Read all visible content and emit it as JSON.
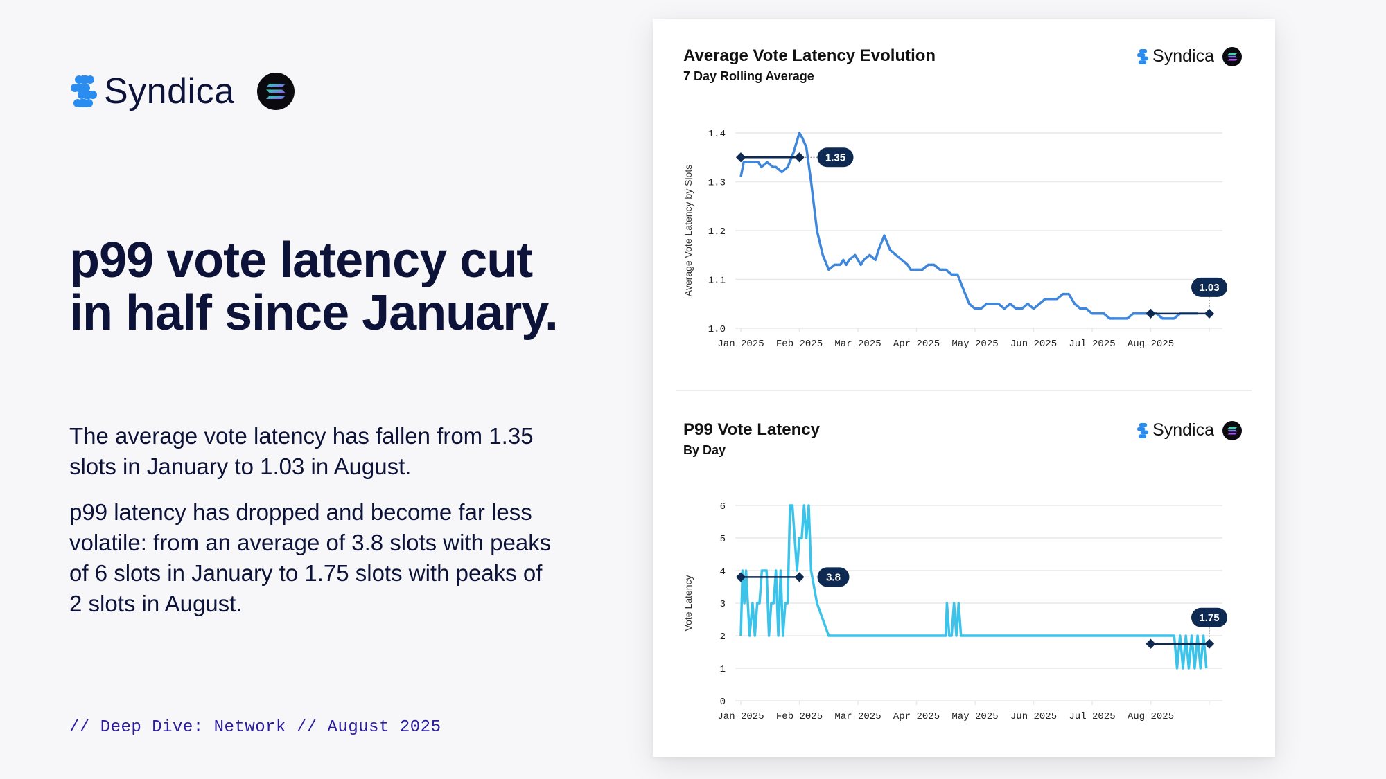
{
  "brand": {
    "name": "Syndica",
    "logo_icon": "syndica-logo-icon",
    "partner_icon": "solana-logo-icon"
  },
  "headline": "p99 vote latency cut in half since January.",
  "paragraphs": [
    "The average vote latency has fallen from 1.35 slots in January to 1.03 in August.",
    "p99 latency has dropped and become far less volatile: from an average of 3.8 slots with peaks of 6 slots in January to 1.75 slots with peaks of 2 slots in August."
  ],
  "footer": "// Deep Dive: Network // August 2025",
  "colors": {
    "navy": "#0d1338",
    "avg_line": "#3f87dc",
    "p99_line": "#3cc3ea",
    "annotation": "#0e2a52",
    "footer": "#2a1c9e"
  },
  "chart_data": [
    {
      "type": "line",
      "title": "Average Vote Latency Evolution",
      "subtitle": "7 Day Rolling Average",
      "xlabel": "",
      "ylabel": "Average Vote Latency by Slots",
      "ylim": [
        1.0,
        1.4
      ],
      "yticks": [
        "1.0",
        "1.1",
        "1.2",
        "1.3",
        "1.4"
      ],
      "ytick_values": [
        1.0,
        1.1,
        1.2,
        1.3,
        1.4
      ],
      "xticks": [
        "Jan 2025",
        "Feb 2025",
        "Mar 2025",
        "Apr 2025",
        "May 2025",
        "Jun 2025",
        "Jul 2025",
        "Aug 2025"
      ],
      "grid": true,
      "legend": "none",
      "x_unit": "months since Jan 1 2025",
      "series": [
        {
          "name": "Average Vote Latency (7d rolling)",
          "x": [
            0,
            0.05,
            0.15,
            0.3,
            0.35,
            0.45,
            0.55,
            0.6,
            0.7,
            0.8,
            0.9,
            1.0,
            1.05,
            1.12,
            1.2,
            1.3,
            1.4,
            1.5,
            1.6,
            1.7,
            1.75,
            1.8,
            1.85,
            1.95,
            2.05,
            2.1,
            2.2,
            2.3,
            2.35,
            2.45,
            2.55,
            2.65,
            2.75,
            2.85,
            2.9,
            3.0,
            3.1,
            3.2,
            3.3,
            3.4,
            3.5,
            3.6,
            3.7,
            3.8,
            3.9,
            4.0,
            4.1,
            4.2,
            4.3,
            4.4,
            4.5,
            4.6,
            4.7,
            4.8,
            4.9,
            5.0,
            5.1,
            5.2,
            5.3,
            5.4,
            5.5,
            5.6,
            5.7,
            5.8,
            5.9,
            6.0,
            6.1,
            6.2,
            6.3,
            6.4,
            6.5,
            6.6,
            6.7,
            6.8,
            6.9,
            7.0,
            7.1,
            7.2,
            7.3,
            7.4,
            7.5,
            7.6,
            7.7,
            7.8
          ],
          "values": [
            1.31,
            1.34,
            1.34,
            1.34,
            1.33,
            1.34,
            1.33,
            1.33,
            1.32,
            1.33,
            1.36,
            1.4,
            1.39,
            1.37,
            1.3,
            1.2,
            1.15,
            1.12,
            1.13,
            1.13,
            1.14,
            1.13,
            1.14,
            1.15,
            1.13,
            1.14,
            1.15,
            1.14,
            1.16,
            1.19,
            1.16,
            1.15,
            1.14,
            1.13,
            1.12,
            1.12,
            1.12,
            1.13,
            1.13,
            1.12,
            1.12,
            1.11,
            1.11,
            1.08,
            1.05,
            1.04,
            1.04,
            1.05,
            1.05,
            1.05,
            1.04,
            1.05,
            1.04,
            1.04,
            1.05,
            1.04,
            1.05,
            1.06,
            1.06,
            1.06,
            1.07,
            1.07,
            1.05,
            1.04,
            1.04,
            1.03,
            1.03,
            1.03,
            1.02,
            1.02,
            1.02,
            1.02,
            1.03,
            1.03,
            1.03,
            1.03,
            1.03,
            1.02,
            1.02,
            1.02,
            1.03,
            1.03,
            1.03,
            1.03
          ]
        }
      ],
      "annotations": [
        {
          "label": "1.35",
          "value": 1.35,
          "x_start": 0,
          "x_end": 1.0,
          "label_side": "right"
        },
        {
          "label": "1.03",
          "value": 1.03,
          "x_start": 7.0,
          "x_end": 8.0,
          "label_side": "above"
        }
      ]
    },
    {
      "type": "line",
      "title": "P99 Vote Latency",
      "subtitle": "By Day",
      "xlabel": "",
      "ylabel": "Vote Latency",
      "ylim": [
        0,
        6
      ],
      "yticks": [
        "0",
        "1",
        "2",
        "3",
        "4",
        "5",
        "6"
      ],
      "ytick_values": [
        0,
        1,
        2,
        3,
        4,
        5,
        6
      ],
      "xticks": [
        "Jan 2025",
        "Feb 2025",
        "Mar 2025",
        "Apr 2025",
        "May 2025",
        "Jun 2025",
        "Jul 2025",
        "Aug 2025"
      ],
      "grid": true,
      "legend": "none",
      "x_unit": "months since Jan 1 2025",
      "series": [
        {
          "name": "P99 Vote Latency (daily)",
          "x": [
            0,
            0.03,
            0.06,
            0.09,
            0.12,
            0.15,
            0.2,
            0.24,
            0.28,
            0.32,
            0.36,
            0.4,
            0.44,
            0.48,
            0.52,
            0.56,
            0.6,
            0.64,
            0.68,
            0.72,
            0.76,
            0.8,
            0.84,
            0.88,
            0.92,
            0.96,
            1.0,
            1.04,
            1.08,
            1.12,
            1.16,
            1.2,
            1.3,
            1.5,
            3.5,
            3.52,
            3.56,
            3.6,
            3.64,
            3.68,
            3.72,
            3.76,
            3.8,
            3.9,
            7.4,
            7.45,
            7.5,
            7.55,
            7.6,
            7.65,
            7.7,
            7.75,
            7.8,
            7.85,
            7.9,
            7.95
          ],
          "values": [
            2,
            4,
            3,
            4,
            3,
            2,
            3,
            2,
            3,
            3,
            4,
            4,
            4,
            2,
            3,
            3,
            4,
            2,
            4,
            2,
            3,
            3,
            6,
            6,
            5,
            4,
            5,
            5,
            6,
            5,
            6,
            4,
            3,
            2,
            2,
            3,
            2,
            2,
            3,
            2,
            3,
            2,
            2,
            2,
            2,
            1,
            2,
            1,
            2,
            1,
            2,
            1,
            2,
            1,
            2,
            1
          ],
          "peak": 6
        }
      ],
      "annotations": [
        {
          "label": "3.8",
          "value": 3.8,
          "x_start": 0,
          "x_end": 1.0,
          "label_side": "right"
        },
        {
          "label": "1.75",
          "value": 1.75,
          "x_start": 7.0,
          "x_end": 8.0,
          "label_side": "above"
        }
      ]
    }
  ]
}
